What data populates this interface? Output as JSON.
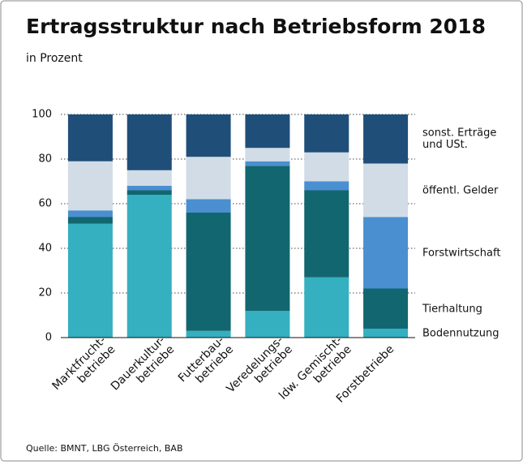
{
  "chart_data": {
    "type": "stacked-bar",
    "title": "Ertragsstruktur nach Betriebsform 2018",
    "subtitle": "in Prozent",
    "source": "Quelle: BMNT, LBG Österreich, BAB",
    "categories": [
      "Marktfrucht-\nbetriebe",
      "Dauerkultur-\nbetriebe",
      "Futterbau-\nbetriebe",
      "Veredelungs-\nbetriebe",
      "ldw. Gemischt-\nbetriebe",
      "Forstbetriebe"
    ],
    "series": [
      {
        "name": "Bodennutzung",
        "color": "#34b0c0",
        "values": [
          51,
          64,
          3,
          12,
          27,
          4
        ]
      },
      {
        "name": "Tierhaltung",
        "color": "#12666f",
        "values": [
          3,
          2,
          53,
          65,
          39,
          18
        ]
      },
      {
        "name": "Forstwirtschaft",
        "color": "#4a8fd0",
        "values": [
          3,
          2,
          6,
          2,
          4,
          32
        ]
      },
      {
        "name": "öffentl. Gelder",
        "color": "#d1dce6",
        "values": [
          22,
          7,
          19,
          6,
          13,
          24
        ]
      },
      {
        "name": "sonst. Erträge\nund USt.",
        "color": "#1f4e79",
        "values": [
          21,
          25,
          19,
          15,
          17,
          22
        ]
      }
    ],
    "ylim": [
      0,
      100
    ],
    "yticks": [
      0,
      20,
      40,
      60,
      80,
      100
    ],
    "grid": true
  }
}
